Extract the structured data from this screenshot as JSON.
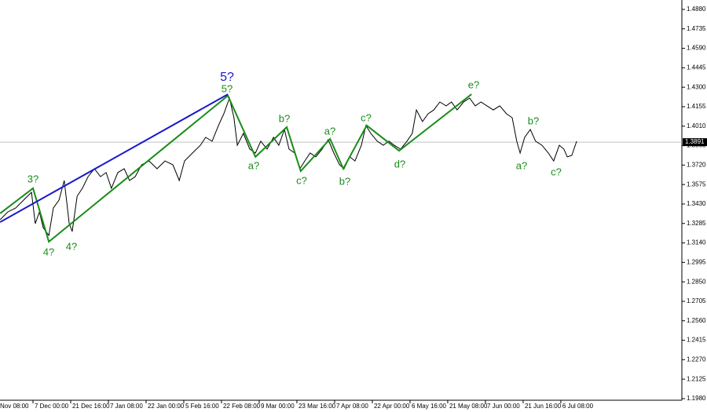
{
  "chart_data": {
    "type": "line",
    "xlim": [
      0.125,
      18.21
    ],
    "ylim": [
      1.1968,
      1.495
    ],
    "xticks": [
      {
        "value": 0,
        "label": "Nov 08:00"
      },
      {
        "value": 1,
        "label": "7 Dec 00:00"
      },
      {
        "value": 2,
        "label": "21 Dec 16:00"
      },
      {
        "value": 3,
        "label": "7 Jan 08:00"
      },
      {
        "value": 4,
        "label": "22 Jan 00:00"
      },
      {
        "value": 5,
        "label": "5 Feb 16:00"
      },
      {
        "value": 6,
        "label": "22 Feb 08:00"
      },
      {
        "value": 7,
        "label": "9 Mar 00:00"
      },
      {
        "value": 8,
        "label": "23 Mar 16:00"
      },
      {
        "value": 9,
        "label": "7 Apr 08:00"
      },
      {
        "value": 10,
        "label": "22 Apr 00:00"
      },
      {
        "value": 11,
        "label": "6 May 16:00"
      },
      {
        "value": 12,
        "label": "21 May 08:00"
      },
      {
        "value": 13,
        "label": "7 Jun 00:00"
      },
      {
        "value": 14,
        "label": "21 Jun 16:00"
      },
      {
        "value": 15,
        "label": "6 Jul 08:00"
      }
    ],
    "yticks": [
      {
        "value": 1.488,
        "label": "1.4880"
      },
      1.4735,
      {
        "value": 1.459,
        "label": "1.4590"
      },
      1.4445,
      {
        "value": 1.43,
        "label": "1.4300"
      },
      1.4155,
      {
        "value": 1.401,
        "label": "1.4010"
      },
      1.3865,
      {
        "value": 1.372,
        "label": "1.3720"
      },
      1.3575,
      {
        "value": 1.343,
        "label": "1.3430"
      },
      1.3285,
      {
        "value": 1.314,
        "label": "1.3140"
      },
      1.2995,
      {
        "value": 1.285,
        "label": "1.2850"
      },
      1.2705,
      {
        "value": 1.256,
        "label": "1.2560"
      },
      1.2415,
      {
        "value": 1.227,
        "label": "1.2270"
      },
      1.2125,
      {
        "value": 1.198,
        "label": "1.1980"
      }
    ],
    "last_price": 1.3891,
    "series": [
      {
        "color": "#000000",
        "x": [
          0.13,
          0.33,
          0.54,
          0.75,
          0.96,
          1.06,
          1.17,
          1.27,
          1.42,
          1.54,
          1.69,
          1.83,
          1.96,
          2.04,
          2.17,
          2.31,
          2.46,
          2.63,
          2.79,
          2.94,
          3.08,
          3.25,
          3.42,
          3.56,
          3.71,
          3.88,
          4.08,
          4.29,
          4.5,
          4.71,
          4.88,
          5.02,
          5.23,
          5.44,
          5.58,
          5.75,
          5.92,
          6.06,
          6.21,
          6.33,
          6.42,
          6.58,
          6.75,
          6.9,
          7.04,
          7.21,
          7.38,
          7.52,
          7.67,
          7.79,
          7.94,
          8.08,
          8.21,
          8.35,
          8.5,
          8.67,
          8.83,
          8.98,
          9.13,
          9.25,
          9.4,
          9.54,
          9.71,
          9.83,
          9.96,
          10.13,
          10.29,
          10.44,
          10.58,
          10.75,
          10.92,
          11.06,
          11.17,
          11.33,
          11.48,
          11.63,
          11.79,
          11.96,
          12.1,
          12.25,
          12.42,
          12.58,
          12.73,
          12.88,
          13.04,
          13.21,
          13.38,
          13.56,
          13.71,
          13.83,
          13.92,
          14.04,
          14.19,
          14.33,
          14.5,
          14.67,
          14.81,
          14.96,
          15.08,
          15.17,
          15.29,
          15.42
        ],
        "values": [
          1.3313,
          1.3371,
          1.34,
          1.3459,
          1.3517,
          1.3284,
          1.3371,
          1.3254,
          1.3196,
          1.34,
          1.3459,
          1.3605,
          1.3284,
          1.3225,
          1.3488,
          1.3547,
          1.3634,
          1.3693,
          1.3634,
          1.3664,
          1.3547,
          1.3664,
          1.3693,
          1.3605,
          1.3634,
          1.3722,
          1.3751,
          1.3693,
          1.3751,
          1.3722,
          1.3605,
          1.3751,
          1.381,
          1.3868,
          1.3927,
          1.3898,
          1.4015,
          1.4102,
          1.4219,
          1.4073,
          1.3868,
          1.3956,
          1.3839,
          1.381,
          1.3898,
          1.3839,
          1.3927,
          1.3868,
          1.3985,
          1.3839,
          1.381,
          1.3693,
          1.3751,
          1.381,
          1.3781,
          1.3839,
          1.3909,
          1.381,
          1.3722,
          1.3693,
          1.3781,
          1.3751,
          1.3868,
          1.4015,
          1.3956,
          1.3898,
          1.3868,
          1.3898,
          1.3868,
          1.3839,
          1.3898,
          1.3956,
          1.4131,
          1.4044,
          1.4102,
          1.4131,
          1.419,
          1.4161,
          1.419,
          1.4131,
          1.419,
          1.4219,
          1.4161,
          1.419,
          1.4161,
          1.4131,
          1.4161,
          1.4102,
          1.4073,
          1.3898,
          1.381,
          1.3927,
          1.3985,
          1.3898,
          1.3868,
          1.381,
          1.3751,
          1.3868,
          1.3839,
          1.3781,
          1.3792,
          1.3898
        ]
      },
      {
        "color": "#1a8c1a",
        "x": [
          0.13,
          1.0,
          1.42,
          6.17,
          6.9,
          7.73,
          8.1,
          8.88,
          9.23,
          9.85,
          10.71,
          12.63
        ],
        "values": [
          1.336,
          1.3547,
          1.3149,
          1.4237,
          1.3781,
          1.4003,
          1.3675,
          1.3915,
          1.3693,
          1.4015,
          1.3827,
          1.4248
        ]
      },
      {
        "color": "#1818d0",
        "x": [
          0.13,
          6.17
        ],
        "values": [
          1.3295,
          1.4248
        ]
      }
    ],
    "annotations": [
      {
        "text": "3?",
        "color": "#1a8c1a"
      },
      {
        "text": "4?",
        "color": "#1a8c1a"
      },
      {
        "text": "4?",
        "color": "#1a8c1a"
      },
      {
        "text": "5?",
        "color": "#1818d0"
      },
      {
        "text": "5?",
        "color": "#1a8c1a"
      },
      {
        "text": "a?",
        "color": "#1a8c1a"
      },
      {
        "text": "b?",
        "color": "#1a8c1a"
      },
      {
        "text": "c?",
        "color": "#1a8c1a"
      },
      {
        "text": "a?",
        "color": "#1a8c1a"
      },
      {
        "text": "b?",
        "color": "#1a8c1a"
      },
      {
        "text": "c?",
        "color": "#1a8c1a"
      },
      {
        "text": "d?",
        "color": "#1a8c1a"
      },
      {
        "text": "e?",
        "color": "#1a8c1a"
      },
      {
        "text": "a?",
        "color": "#1a8c1a"
      },
      {
        "text": "b?",
        "color": "#1a8c1a"
      },
      {
        "text": "c?",
        "color": "#1a8c1a"
      }
    ]
  }
}
